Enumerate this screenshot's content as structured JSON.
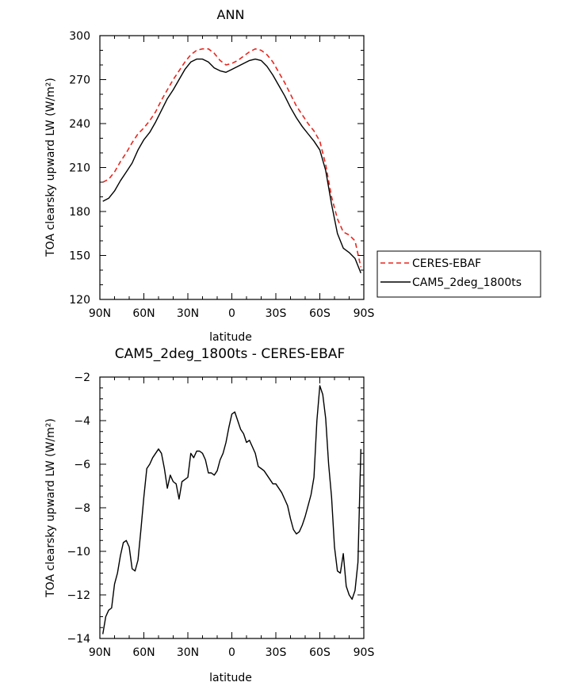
{
  "chart_data": [
    {
      "type": "line",
      "title": "ANN",
      "xlabel": "latitude",
      "ylabel": "TOA clearsky upward LW (W/m²)",
      "xlim": [
        90,
        -90
      ],
      "ylim": [
        120,
        300
      ],
      "xticks": [
        {
          "v": 90,
          "label": "90N"
        },
        {
          "v": 60,
          "label": "60N"
        },
        {
          "v": 30,
          "label": "30N"
        },
        {
          "v": 0,
          "label": "0"
        },
        {
          "v": -30,
          "label": "30S"
        },
        {
          "v": -60,
          "label": "60S"
        },
        {
          "v": -90,
          "label": "90S"
        }
      ],
      "yticks": [
        120,
        150,
        180,
        210,
        240,
        270,
        300
      ],
      "legend": "right",
      "series": [
        {
          "name": "CERES-EBAF",
          "color": "#e8261e",
          "dash": true,
          "points": [
            [
              88,
              200
            ],
            [
              84,
              202
            ],
            [
              80,
              207
            ],
            [
              76,
              214
            ],
            [
              72,
              220
            ],
            [
              68,
              227
            ],
            [
              64,
              233
            ],
            [
              60,
              237
            ],
            [
              56,
              242
            ],
            [
              52,
              248
            ],
            [
              48,
              256
            ],
            [
              44,
              263
            ],
            [
              40,
              270
            ],
            [
              36,
              276
            ],
            [
              32,
              282
            ],
            [
              28,
              287
            ],
            [
              24,
              290
            ],
            [
              20,
              291
            ],
            [
              16,
              291
            ],
            [
              12,
              288
            ],
            [
              8,
              283
            ],
            [
              4,
              280
            ],
            [
              0,
              281
            ],
            [
              -4,
              283
            ],
            [
              -8,
              286
            ],
            [
              -12,
              289
            ],
            [
              -16,
              291
            ],
            [
              -20,
              290
            ],
            [
              -24,
              287
            ],
            [
              -28,
              282
            ],
            [
              -32,
              275
            ],
            [
              -36,
              268
            ],
            [
              -40,
              260
            ],
            [
              -44,
              252
            ],
            [
              -48,
              246
            ],
            [
              -52,
              240
            ],
            [
              -56,
              235
            ],
            [
              -60,
              228
            ],
            [
              -64,
              212
            ],
            [
              -68,
              190
            ],
            [
              -72,
              175
            ],
            [
              -76,
              166
            ],
            [
              -80,
              164
            ],
            [
              -84,
              160
            ],
            [
              -88,
              142
            ]
          ]
        },
        {
          "name": "CAM5_2deg_1800ts",
          "color": "#000000",
          "dash": false,
          "points": [
            [
              88,
              187
            ],
            [
              84,
              189
            ],
            [
              80,
              194
            ],
            [
              76,
              201
            ],
            [
              72,
              207
            ],
            [
              68,
              213
            ],
            [
              64,
              222
            ],
            [
              60,
              229
            ],
            [
              56,
              234
            ],
            [
              52,
              241
            ],
            [
              48,
              249
            ],
            [
              44,
              257
            ],
            [
              40,
              263
            ],
            [
              36,
              270
            ],
            [
              32,
              277
            ],
            [
              28,
              282
            ],
            [
              24,
              284
            ],
            [
              20,
              284
            ],
            [
              16,
              282
            ],
            [
              12,
              278
            ],
            [
              8,
              276
            ],
            [
              4,
              275
            ],
            [
              0,
              277
            ],
            [
              -4,
              279
            ],
            [
              -8,
              281
            ],
            [
              -12,
              283
            ],
            [
              -16,
              284
            ],
            [
              -20,
              283
            ],
            [
              -24,
              279
            ],
            [
              -28,
              273
            ],
            [
              -32,
              266
            ],
            [
              -36,
              259
            ],
            [
              -40,
              251
            ],
            [
              -44,
              244
            ],
            [
              -48,
              238
            ],
            [
              -52,
              233
            ],
            [
              -56,
              228
            ],
            [
              -60,
              222
            ],
            [
              -64,
              208
            ],
            [
              -68,
              185
            ],
            [
              -72,
              165
            ],
            [
              -76,
              155
            ],
            [
              -80,
              152
            ],
            [
              -84,
              148
            ],
            [
              -88,
              138
            ]
          ]
        }
      ]
    },
    {
      "type": "line",
      "title": "CAM5_2deg_1800ts - CERES-EBAF",
      "xlabel": "latitude",
      "ylabel": "TOA clearsky upward LW (W/m²)",
      "xlim": [
        90,
        -90
      ],
      "ylim": [
        -14,
        -2
      ],
      "xticks": [
        {
          "v": 90,
          "label": "90N"
        },
        {
          "v": 60,
          "label": "60N"
        },
        {
          "v": 30,
          "label": "30N"
        },
        {
          "v": 0,
          "label": "0"
        },
        {
          "v": -30,
          "label": "30S"
        },
        {
          "v": -60,
          "label": "60S"
        },
        {
          "v": -90,
          "label": "90S"
        }
      ],
      "yticks": [
        -14,
        -12,
        -10,
        -8,
        -6,
        -4,
        -2
      ],
      "series": [
        {
          "name": "",
          "color": "#000000",
          "dash": false,
          "points": [
            [
              88,
              -13.8
            ],
            [
              86,
              -13.0
            ],
            [
              84,
              -12.7
            ],
            [
              82,
              -12.6
            ],
            [
              80,
              -11.5
            ],
            [
              78,
              -11.0
            ],
            [
              76,
              -10.2
            ],
            [
              74,
              -9.6
            ],
            [
              72,
              -9.5
            ],
            [
              70,
              -9.8
            ],
            [
              68,
              -10.8
            ],
            [
              66,
              -10.9
            ],
            [
              64,
              -10.4
            ],
            [
              62,
              -9.0
            ],
            [
              60,
              -7.5
            ],
            [
              58,
              -6.2
            ],
            [
              56,
              -6.0
            ],
            [
              54,
              -5.7
            ],
            [
              52,
              -5.5
            ],
            [
              50,
              -5.3
            ],
            [
              48,
              -5.5
            ],
            [
              46,
              -6.2
            ],
            [
              44,
              -7.1
            ],
            [
              42,
              -6.5
            ],
            [
              40,
              -6.8
            ],
            [
              38,
              -6.9
            ],
            [
              36,
              -7.6
            ],
            [
              34,
              -6.8
            ],
            [
              32,
              -6.7
            ],
            [
              30,
              -6.6
            ],
            [
              28,
              -5.5
            ],
            [
              26,
              -5.7
            ],
            [
              24,
              -5.4
            ],
            [
              22,
              -5.4
            ],
            [
              20,
              -5.5
            ],
            [
              18,
              -5.8
            ],
            [
              16,
              -6.4
            ],
            [
              14,
              -6.4
            ],
            [
              12,
              -6.5
            ],
            [
              10,
              -6.3
            ],
            [
              8,
              -5.8
            ],
            [
              6,
              -5.5
            ],
            [
              4,
              -5.0
            ],
            [
              2,
              -4.3
            ],
            [
              0,
              -3.7
            ],
            [
              -2,
              -3.6
            ],
            [
              -4,
              -4.0
            ],
            [
              -6,
              -4.4
            ],
            [
              -8,
              -4.6
            ],
            [
              -10,
              -5.0
            ],
            [
              -12,
              -4.9
            ],
            [
              -14,
              -5.2
            ],
            [
              -16,
              -5.5
            ],
            [
              -18,
              -6.1
            ],
            [
              -20,
              -6.2
            ],
            [
              -22,
              -6.3
            ],
            [
              -24,
              -6.5
            ],
            [
              -26,
              -6.7
            ],
            [
              -28,
              -6.9
            ],
            [
              -30,
              -6.9
            ],
            [
              -32,
              -7.1
            ],
            [
              -34,
              -7.3
            ],
            [
              -36,
              -7.6
            ],
            [
              -38,
              -7.9
            ],
            [
              -40,
              -8.5
            ],
            [
              -42,
              -9.0
            ],
            [
              -44,
              -9.2
            ],
            [
              -46,
              -9.1
            ],
            [
              -48,
              -8.8
            ],
            [
              -50,
              -8.4
            ],
            [
              -52,
              -7.9
            ],
            [
              -54,
              -7.4
            ],
            [
              -56,
              -6.6
            ],
            [
              -58,
              -4.0
            ],
            [
              -60,
              -2.4
            ],
            [
              -62,
              -2.8
            ],
            [
              -64,
              -3.9
            ],
            [
              -66,
              -6.0
            ],
            [
              -68,
              -7.5
            ],
            [
              -70,
              -9.8
            ],
            [
              -72,
              -10.9
            ],
            [
              -74,
              -11.0
            ],
            [
              -76,
              -10.1
            ],
            [
              -78,
              -11.6
            ],
            [
              -80,
              -12.0
            ],
            [
              -82,
              -12.2
            ],
            [
              -84,
              -11.8
            ],
            [
              -86,
              -10.5
            ],
            [
              -88,
              -5.3
            ]
          ]
        }
      ]
    }
  ]
}
